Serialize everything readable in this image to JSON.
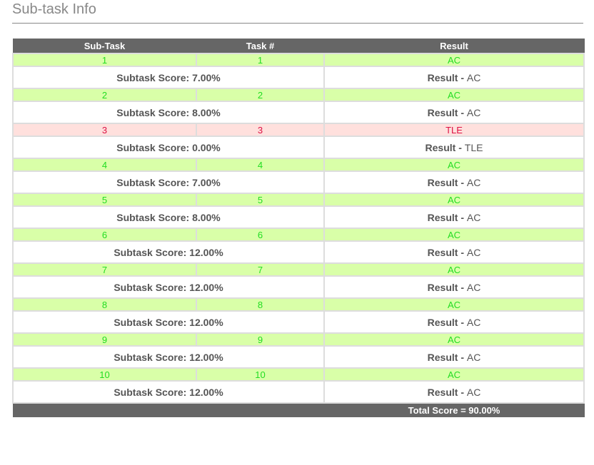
{
  "section_title": "Sub-task Info",
  "headers": {
    "subtask": "Sub-Task",
    "task": "Task #",
    "result": "Result"
  },
  "score_label": "Subtask Score:",
  "result_label": "Result -",
  "rows": [
    {
      "subtask": "1",
      "task": "1",
      "result": "AC",
      "score": "7.00%",
      "status": "ac"
    },
    {
      "subtask": "2",
      "task": "2",
      "result": "AC",
      "score": "8.00%",
      "status": "ac"
    },
    {
      "subtask": "3",
      "task": "3",
      "result": "TLE",
      "score": "0.00%",
      "status": "tle"
    },
    {
      "subtask": "4",
      "task": "4",
      "result": "AC",
      "score": "7.00%",
      "status": "ac"
    },
    {
      "subtask": "5",
      "task": "5",
      "result": "AC",
      "score": "8.00%",
      "status": "ac"
    },
    {
      "subtask": "6",
      "task": "6",
      "result": "AC",
      "score": "12.00%",
      "status": "ac"
    },
    {
      "subtask": "7",
      "task": "7",
      "result": "AC",
      "score": "12.00%",
      "status": "ac"
    },
    {
      "subtask": "8",
      "task": "8",
      "result": "AC",
      "score": "12.00%",
      "status": "ac"
    },
    {
      "subtask": "9",
      "task": "9",
      "result": "AC",
      "score": "12.00%",
      "status": "ac"
    },
    {
      "subtask": "10",
      "task": "10",
      "result": "AC",
      "score": "12.00%",
      "status": "ac"
    }
  ],
  "total": "Total Score = 90.00%",
  "colors": {
    "header_bg": "#666666",
    "ac_bg": "#d9ffa8",
    "ac_text": "#22dd22",
    "tle_bg": "#ffe0dd",
    "tle_text": "#dd1144"
  }
}
